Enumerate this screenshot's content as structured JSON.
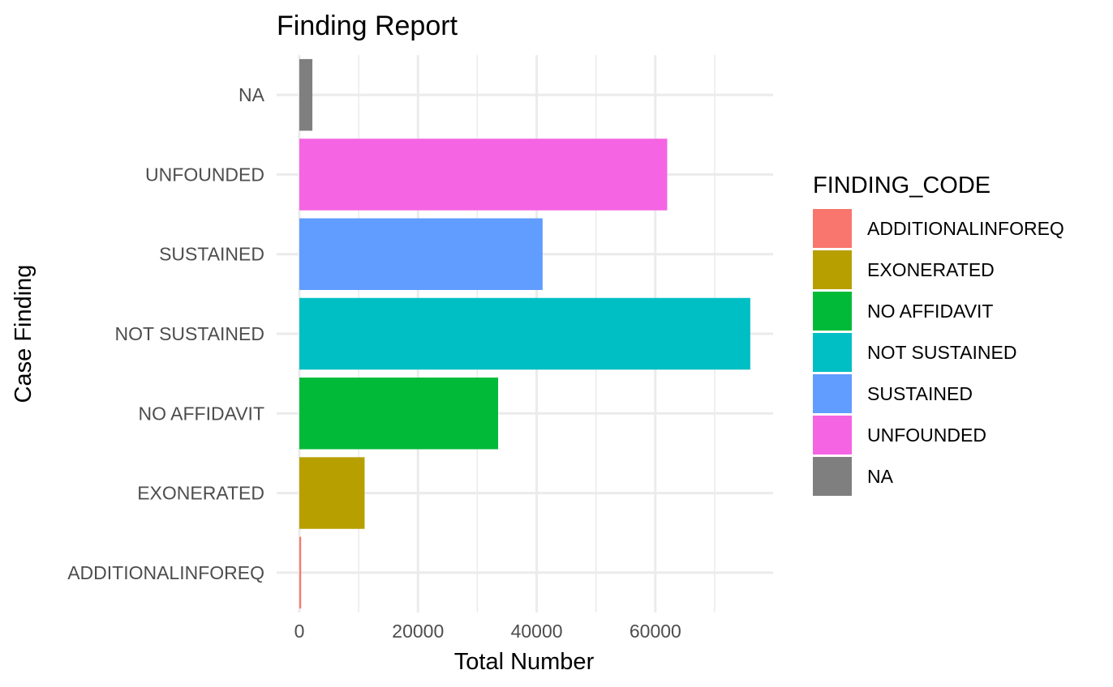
{
  "chart_data": {
    "type": "bar",
    "orientation": "horizontal",
    "title": "Finding Report",
    "xlabel": "Total Number",
    "ylabel": "Case Finding",
    "categories": [
      "ADDITIONALINFOREQ",
      "EXONERATED",
      "NO AFFIDAVIT",
      "NOT SUSTAINED",
      "SUSTAINED",
      "UNFOUNDED",
      "NA"
    ],
    "values": [
      300,
      11000,
      33500,
      76000,
      41000,
      62000,
      2200
    ],
    "colors": [
      "#F8766D",
      "#B79F00",
      "#00BA38",
      "#00BFC4",
      "#619CFF",
      "#F564E3",
      "#7F7F7F"
    ],
    "xlim": [
      0,
      80000
    ],
    "xticks": [
      0,
      20000,
      40000,
      60000
    ],
    "grid": true,
    "legend": {
      "title": "FINDING_CODE",
      "position": "right",
      "entries": [
        "ADDITIONALINFOREQ",
        "EXONERATED",
        "NO AFFIDAVIT",
        "NOT SUSTAINED",
        "SUSTAINED",
        "UNFOUNDED",
        "NA"
      ]
    }
  }
}
